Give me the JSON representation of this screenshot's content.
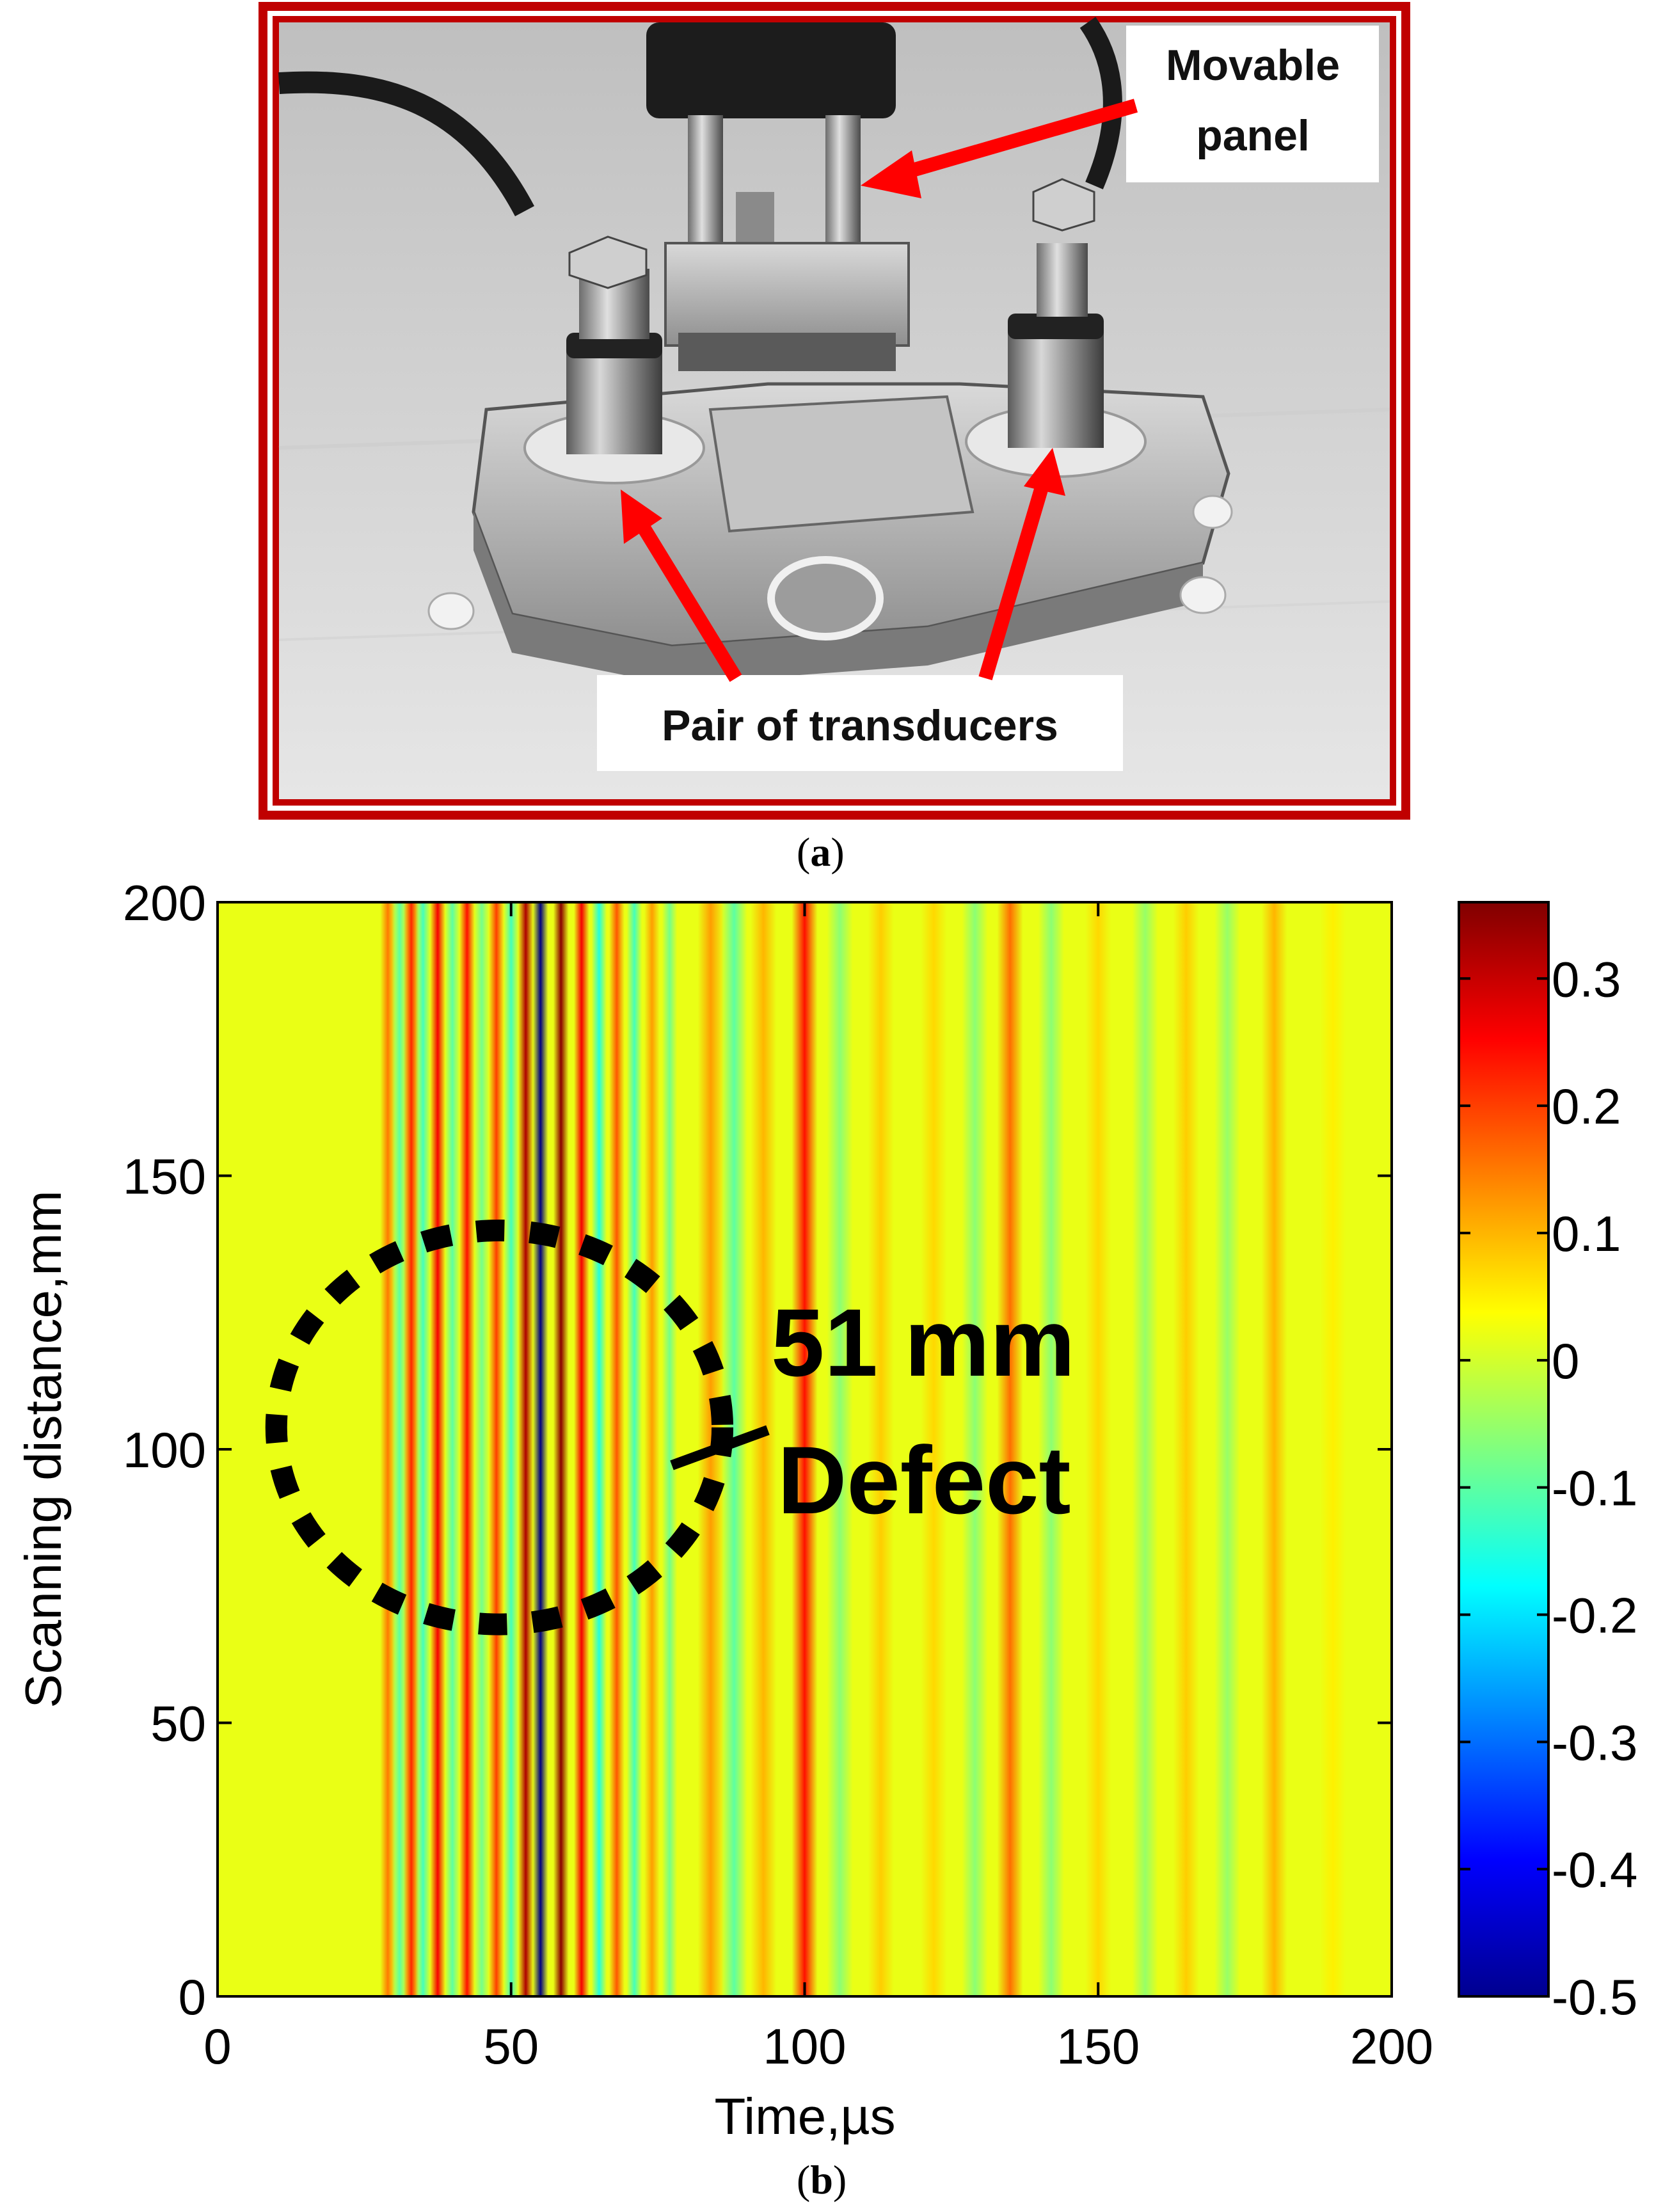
{
  "panel_a": {
    "callout_movable": [
      "Movable",
      "panel"
    ],
    "callout_transducers": "Pair of transducers",
    "caption": "a",
    "frame_color": "#c00000",
    "arrow_color": "#ff0000"
  },
  "panel_b": {
    "caption": "b",
    "annotation_line1": "51 mm",
    "annotation_line2": "Defect"
  },
  "chart_data": {
    "type": "heatmap",
    "xlabel": "Time,µs",
    "ylabel": "Scanning distance,mm",
    "xlim": [
      0,
      200
    ],
    "ylim": [
      0,
      200
    ],
    "x_ticks": [
      0,
      50,
      100,
      150,
      200
    ],
    "y_ticks": [
      0,
      50,
      100,
      150,
      200
    ],
    "colorbar": {
      "range": [
        -0.5,
        0.36
      ],
      "ticks": [
        "0.3",
        "0.2",
        "0.1",
        "0",
        "-0.1",
        "-0.2",
        "-0.3",
        "-0.4",
        "-0.5"
      ],
      "tick_values": [
        0.3,
        0.2,
        0.1,
        0,
        -0.1,
        -0.2,
        -0.3,
        -0.4,
        -0.5
      ],
      "colormap": "jet"
    },
    "signal_bands": [
      {
        "time": 29,
        "amplitude": 0.15
      },
      {
        "time": 31,
        "amplitude": -0.1
      },
      {
        "time": 33,
        "amplitude": 0.22
      },
      {
        "time": 35,
        "amplitude": -0.12
      },
      {
        "time": 37.5,
        "amplitude": 0.26
      },
      {
        "time": 40,
        "amplitude": -0.1
      },
      {
        "time": 42.5,
        "amplitude": 0.24
      },
      {
        "time": 45,
        "amplitude": -0.08
      },
      {
        "time": 47.5,
        "amplitude": 0.2
      },
      {
        "time": 50,
        "amplitude": -0.12
      },
      {
        "time": 52.5,
        "amplitude": 0.32
      },
      {
        "time": 55,
        "amplitude": -0.5
      },
      {
        "time": 58.5,
        "amplitude": 0.35
      },
      {
        "time": 62,
        "amplitude": 0.26
      },
      {
        "time": 65,
        "amplitude": -0.15
      },
      {
        "time": 68,
        "amplitude": 0.18
      },
      {
        "time": 71,
        "amplitude": -0.12
      },
      {
        "time": 74,
        "amplitude": 0.12
      },
      {
        "time": 77,
        "amplitude": -0.08
      },
      {
        "time": 84,
        "amplitude": 0.12
      },
      {
        "time": 88,
        "amplitude": -0.1
      },
      {
        "time": 93,
        "amplitude": 0.1
      },
      {
        "time": 100,
        "amplitude": 0.24
      },
      {
        "time": 106,
        "amplitude": -0.06
      },
      {
        "time": 113,
        "amplitude": 0.08
      },
      {
        "time": 122,
        "amplitude": 0.07
      },
      {
        "time": 129,
        "amplitude": -0.06
      },
      {
        "time": 135,
        "amplitude": 0.16
      },
      {
        "time": 142,
        "amplitude": -0.06
      },
      {
        "time": 150,
        "amplitude": 0.07
      },
      {
        "time": 158,
        "amplitude": -0.05
      },
      {
        "time": 165,
        "amplitude": 0.08
      },
      {
        "time": 172,
        "amplitude": -0.05
      },
      {
        "time": 180,
        "amplitude": 0.1
      },
      {
        "time": 190,
        "amplitude": 0.05
      }
    ],
    "defect_region": {
      "time_center": 48,
      "distance_center": 104,
      "time_radius": 38,
      "distance_radius": 36
    }
  }
}
